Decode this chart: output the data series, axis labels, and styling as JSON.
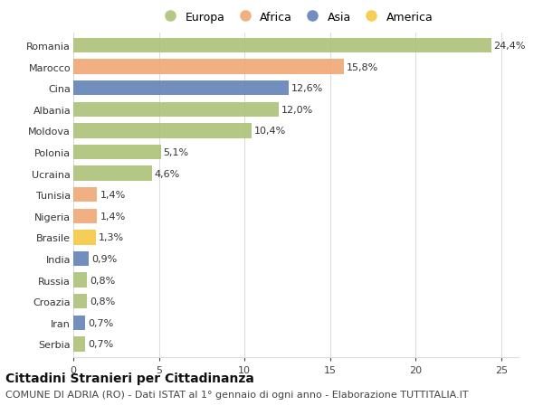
{
  "categories": [
    "Romania",
    "Marocco",
    "Cina",
    "Albania",
    "Moldova",
    "Polonia",
    "Ucraina",
    "Tunisia",
    "Nigeria",
    "Brasile",
    "India",
    "Russia",
    "Croazia",
    "Iran",
    "Serbia"
  ],
  "values": [
    24.4,
    15.8,
    12.6,
    12.0,
    10.4,
    5.1,
    4.6,
    1.4,
    1.4,
    1.3,
    0.9,
    0.8,
    0.8,
    0.7,
    0.7
  ],
  "labels": [
    "24,4%",
    "15,8%",
    "12,6%",
    "12,0%",
    "10,4%",
    "5,1%",
    "4,6%",
    "1,4%",
    "1,4%",
    "1,3%",
    "0,9%",
    "0,8%",
    "0,8%",
    "0,7%",
    "0,7%"
  ],
  "continents": [
    "Europa",
    "Africa",
    "Asia",
    "Europa",
    "Europa",
    "Europa",
    "Europa",
    "Africa",
    "Africa",
    "America",
    "Asia",
    "Europa",
    "Europa",
    "Asia",
    "Europa"
  ],
  "colors": {
    "Europa": "#adc178",
    "Africa": "#f0a875",
    "Asia": "#6282b8",
    "America": "#f5c842"
  },
  "title": "Cittadini Stranieri per Cittadinanza",
  "subtitle": "COMUNE DI ADRIA (RO) - Dati ISTAT al 1° gennaio di ogni anno - Elaborazione TUTTITALIA.IT",
  "xlim": [
    0,
    26
  ],
  "xticks": [
    0,
    5,
    10,
    15,
    20,
    25
  ],
  "background_color": "#ffffff",
  "grid_color": "#dddddd",
  "bar_height": 0.7,
  "title_fontsize": 10,
  "subtitle_fontsize": 8,
  "label_fontsize": 8,
  "tick_fontsize": 8,
  "legend_fontsize": 9
}
